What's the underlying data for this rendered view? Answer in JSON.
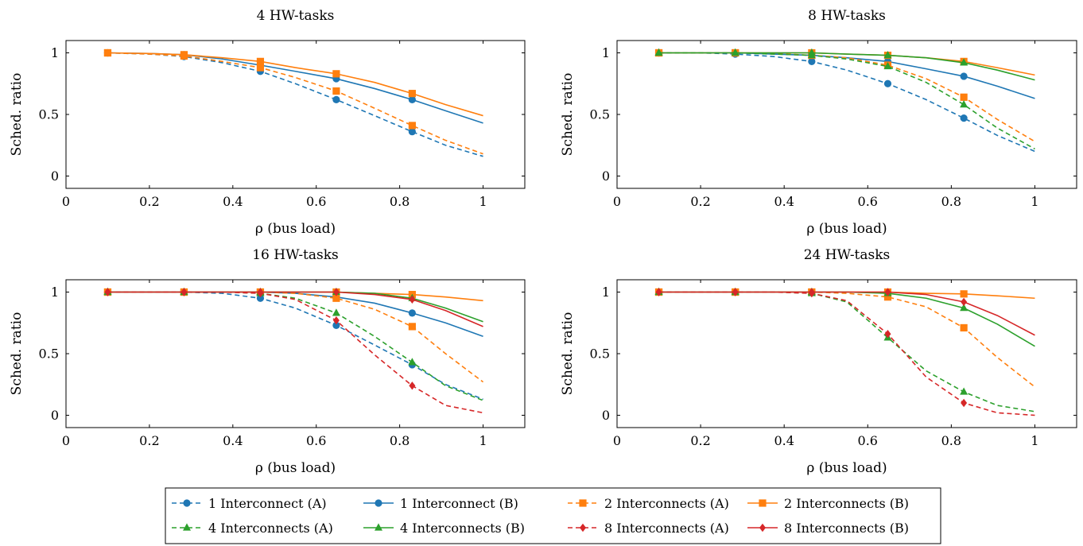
{
  "chart_data": [
    {
      "type": "line",
      "title": "4 HW-tasks",
      "xlabel": "ρ (bus load)",
      "ylabel": "Sched. ratio",
      "xlim": [
        0,
        1.1
      ],
      "ylim": [
        -0.1,
        1.1
      ],
      "xticks": [
        "0",
        "0.2",
        "0.4",
        "0.6",
        "0.8",
        "1"
      ],
      "yticks": [
        "0",
        "0.5",
        "1"
      ],
      "grid": false,
      "series": [
        {
          "name": "1 Interconnect (A)",
          "x": [
            0.1,
            0.2,
            0.283,
            0.375,
            0.466,
            0.55,
            0.648,
            0.74,
            0.83,
            0.91,
            1.0
          ],
          "y": [
            1.0,
            0.99,
            0.97,
            0.92,
            0.85,
            0.75,
            0.62,
            0.49,
            0.36,
            0.25,
            0.16
          ],
          "markers": [
            0,
            2,
            4,
            6,
            8
          ]
        },
        {
          "name": "1 Interconnect (B)",
          "x": [
            0.1,
            0.2,
            0.283,
            0.375,
            0.466,
            0.55,
            0.648,
            0.74,
            0.83,
            0.91,
            1.0
          ],
          "y": [
            1.0,
            0.995,
            0.985,
            0.95,
            0.9,
            0.85,
            0.79,
            0.71,
            0.62,
            0.53,
            0.43
          ],
          "markers": [
            0,
            2,
            4,
            6,
            8
          ]
        },
        {
          "name": "2 Interconnects (A)",
          "x": [
            0.1,
            0.2,
            0.283,
            0.375,
            0.466,
            0.55,
            0.648,
            0.74,
            0.83,
            0.91,
            1.0
          ],
          "y": [
            1.0,
            0.99,
            0.975,
            0.93,
            0.88,
            0.8,
            0.69,
            0.55,
            0.41,
            0.29,
            0.18
          ],
          "markers": [
            0,
            2,
            4,
            6,
            8
          ]
        },
        {
          "name": "2 Interconnects (B)",
          "x": [
            0.1,
            0.2,
            0.283,
            0.375,
            0.466,
            0.55,
            0.648,
            0.74,
            0.83,
            0.91,
            1.0
          ],
          "y": [
            1.0,
            0.995,
            0.985,
            0.96,
            0.93,
            0.88,
            0.83,
            0.76,
            0.67,
            0.58,
            0.49
          ],
          "markers": [
            0,
            2,
            4,
            6,
            8
          ]
        }
      ]
    },
    {
      "type": "line",
      "title": "8 HW-tasks",
      "xlabel": "ρ (bus load)",
      "ylabel": "Sched. ratio",
      "xlim": [
        0,
        1.1
      ],
      "ylim": [
        -0.1,
        1.1
      ],
      "xticks": [
        "0",
        "0.2",
        "0.4",
        "0.6",
        "0.8",
        "1"
      ],
      "yticks": [
        "0",
        "0.5",
        "1"
      ],
      "grid": false,
      "series": [
        {
          "name": "1 Interconnect (A)",
          "x": [
            0.1,
            0.2,
            0.283,
            0.375,
            0.466,
            0.55,
            0.648,
            0.74,
            0.83,
            0.91,
            1.0
          ],
          "y": [
            1.0,
            1.0,
            0.99,
            0.97,
            0.93,
            0.86,
            0.75,
            0.62,
            0.47,
            0.33,
            0.2
          ],
          "markers": [
            0,
            2,
            4,
            6,
            8
          ]
        },
        {
          "name": "1 Interconnect (B)",
          "x": [
            0.1,
            0.2,
            0.283,
            0.375,
            0.466,
            0.55,
            0.648,
            0.74,
            0.83,
            0.91,
            1.0
          ],
          "y": [
            1.0,
            1.0,
            1.0,
            0.99,
            0.98,
            0.96,
            0.93,
            0.87,
            0.81,
            0.73,
            0.63
          ],
          "markers": [
            0,
            2,
            4,
            6,
            8
          ]
        },
        {
          "name": "2 Interconnects (A)",
          "x": [
            0.1,
            0.2,
            0.283,
            0.375,
            0.466,
            0.55,
            0.648,
            0.74,
            0.83,
            0.91,
            1.0
          ],
          "y": [
            1.0,
            1.0,
            1.0,
            0.995,
            0.98,
            0.96,
            0.9,
            0.79,
            0.64,
            0.46,
            0.28
          ],
          "markers": [
            0,
            2,
            4,
            6,
            8
          ]
        },
        {
          "name": "2 Interconnects (B)",
          "x": [
            0.1,
            0.2,
            0.283,
            0.375,
            0.466,
            0.55,
            0.648,
            0.74,
            0.83,
            0.91,
            1.0
          ],
          "y": [
            1.0,
            1.0,
            1.0,
            1.0,
            1.0,
            0.99,
            0.98,
            0.96,
            0.93,
            0.88,
            0.82
          ],
          "markers": [
            0,
            2,
            4,
            6,
            8
          ]
        },
        {
          "name": "4 Interconnects (A)",
          "x": [
            0.1,
            0.2,
            0.283,
            0.375,
            0.466,
            0.55,
            0.648,
            0.74,
            0.83,
            0.91,
            1.0
          ],
          "y": [
            1.0,
            1.0,
            1.0,
            0.99,
            0.98,
            0.95,
            0.89,
            0.76,
            0.58,
            0.39,
            0.22
          ],
          "markers": [
            0,
            2,
            4,
            6,
            8
          ]
        },
        {
          "name": "4 Interconnects (B)",
          "x": [
            0.1,
            0.2,
            0.283,
            0.375,
            0.466,
            0.55,
            0.648,
            0.74,
            0.83,
            0.91,
            1.0
          ],
          "y": [
            1.0,
            1.0,
            1.0,
            1.0,
            1.0,
            0.99,
            0.98,
            0.96,
            0.92,
            0.86,
            0.78
          ],
          "markers": [
            0,
            2,
            4,
            6,
            8
          ]
        }
      ]
    },
    {
      "type": "line",
      "title": "16 HW-tasks",
      "xlabel": "ρ (bus load)",
      "ylabel": "Sched. ratio",
      "xlim": [
        0,
        1.1
      ],
      "ylim": [
        -0.1,
        1.1
      ],
      "xticks": [
        "0",
        "0.2",
        "0.4",
        "0.6",
        "0.8",
        "1"
      ],
      "yticks": [
        "0",
        "0.5",
        "1"
      ],
      "grid": false,
      "series": [
        {
          "name": "1 Interconnect (A)",
          "x": [
            0.1,
            0.2,
            0.283,
            0.375,
            0.466,
            0.55,
            0.648,
            0.74,
            0.83,
            0.91,
            1.0
          ],
          "y": [
            1.0,
            1.0,
            1.0,
            0.99,
            0.95,
            0.87,
            0.73,
            0.57,
            0.41,
            0.25,
            0.13
          ],
          "markers": [
            0,
            2,
            4,
            6,
            8
          ]
        },
        {
          "name": "1 Interconnect (B)",
          "x": [
            0.1,
            0.2,
            0.283,
            0.375,
            0.466,
            0.55,
            0.648,
            0.74,
            0.83,
            0.91,
            1.0
          ],
          "y": [
            1.0,
            1.0,
            1.0,
            1.0,
            1.0,
            0.99,
            0.96,
            0.91,
            0.83,
            0.75,
            0.64
          ],
          "markers": [
            0,
            2,
            4,
            6,
            8
          ]
        },
        {
          "name": "2 Interconnects (A)",
          "x": [
            0.1,
            0.2,
            0.283,
            0.375,
            0.466,
            0.55,
            0.648,
            0.74,
            0.83,
            0.91,
            1.0
          ],
          "y": [
            1.0,
            1.0,
            1.0,
            1.0,
            1.0,
            0.99,
            0.95,
            0.86,
            0.72,
            0.5,
            0.27
          ],
          "markers": [
            0,
            2,
            4,
            6,
            8
          ]
        },
        {
          "name": "2 Interconnects (B)",
          "x": [
            0.1,
            0.2,
            0.283,
            0.375,
            0.466,
            0.55,
            0.648,
            0.74,
            0.83,
            0.91,
            1.0
          ],
          "y": [
            1.0,
            1.0,
            1.0,
            1.0,
            1.0,
            1.0,
            1.0,
            0.99,
            0.98,
            0.96,
            0.93
          ],
          "markers": [
            0,
            2,
            4,
            6,
            8
          ]
        },
        {
          "name": "4 Interconnects (A)",
          "x": [
            0.1,
            0.2,
            0.283,
            0.375,
            0.466,
            0.55,
            0.648,
            0.74,
            0.83,
            0.91,
            1.0
          ],
          "y": [
            1.0,
            1.0,
            1.0,
            1.0,
            0.99,
            0.95,
            0.83,
            0.64,
            0.43,
            0.24,
            0.12
          ],
          "markers": [
            0,
            2,
            4,
            6,
            8
          ]
        },
        {
          "name": "4 Interconnects (B)",
          "x": [
            0.1,
            0.2,
            0.283,
            0.375,
            0.466,
            0.55,
            0.648,
            0.74,
            0.83,
            0.91,
            1.0
          ],
          "y": [
            1.0,
            1.0,
            1.0,
            1.0,
            1.0,
            1.0,
            1.0,
            0.99,
            0.95,
            0.87,
            0.76
          ],
          "markers": [
            0,
            2,
            4,
            6,
            8
          ]
        },
        {
          "name": "8 Interconnects (A)",
          "x": [
            0.1,
            0.2,
            0.283,
            0.375,
            0.466,
            0.55,
            0.648,
            0.74,
            0.83,
            0.91,
            1.0
          ],
          "y": [
            1.0,
            1.0,
            1.0,
            1.0,
            0.99,
            0.94,
            0.77,
            0.49,
            0.24,
            0.08,
            0.02
          ],
          "markers": [
            0,
            2,
            4,
            6,
            8
          ]
        },
        {
          "name": "8 Interconnects (B)",
          "x": [
            0.1,
            0.2,
            0.283,
            0.375,
            0.466,
            0.55,
            0.648,
            0.74,
            0.83,
            0.91,
            1.0
          ],
          "y": [
            1.0,
            1.0,
            1.0,
            1.0,
            1.0,
            1.0,
            1.0,
            0.98,
            0.94,
            0.85,
            0.72
          ],
          "markers": [
            0,
            2,
            4,
            6,
            8
          ]
        }
      ]
    },
    {
      "type": "line",
      "title": "24 HW-tasks",
      "xlabel": "ρ (bus load)",
      "ylabel": "Sched. ratio",
      "xlim": [
        0,
        1.1
      ],
      "ylim": [
        -0.1,
        1.1
      ],
      "xticks": [
        "0",
        "0.2",
        "0.4",
        "0.6",
        "0.8",
        "1"
      ],
      "yticks": [
        "0",
        "0.5",
        "1"
      ],
      "grid": false,
      "series": [
        {
          "name": "2 Interconnects (A)",
          "x": [
            0.1,
            0.2,
            0.283,
            0.375,
            0.466,
            0.55,
            0.648,
            0.74,
            0.83,
            0.91,
            1.0
          ],
          "y": [
            1.0,
            1.0,
            1.0,
            1.0,
            1.0,
            0.99,
            0.96,
            0.88,
            0.71,
            0.47,
            0.23
          ],
          "markers": [
            0,
            2,
            4,
            6,
            8
          ]
        },
        {
          "name": "2 Interconnects (B)",
          "x": [
            0.1,
            0.2,
            0.283,
            0.375,
            0.466,
            0.55,
            0.648,
            0.74,
            0.83,
            0.91,
            1.0
          ],
          "y": [
            1.0,
            1.0,
            1.0,
            1.0,
            1.0,
            1.0,
            1.0,
            0.99,
            0.985,
            0.97,
            0.95
          ],
          "markers": [
            0,
            2,
            4,
            6,
            8
          ]
        },
        {
          "name": "4 Interconnects (A)",
          "x": [
            0.1,
            0.2,
            0.283,
            0.375,
            0.466,
            0.55,
            0.648,
            0.74,
            0.83,
            0.91,
            1.0
          ],
          "y": [
            1.0,
            1.0,
            1.0,
            1.0,
            0.99,
            0.92,
            0.63,
            0.36,
            0.19,
            0.08,
            0.03
          ],
          "markers": [
            0,
            2,
            4,
            6,
            8
          ]
        },
        {
          "name": "4 Interconnects (B)",
          "x": [
            0.1,
            0.2,
            0.283,
            0.375,
            0.466,
            0.55,
            0.648,
            0.74,
            0.83,
            0.91,
            1.0
          ],
          "y": [
            1.0,
            1.0,
            1.0,
            1.0,
            1.0,
            1.0,
            0.99,
            0.95,
            0.87,
            0.74,
            0.56
          ],
          "markers": [
            0,
            2,
            4,
            6,
            8
          ]
        },
        {
          "name": "8 Interconnects (A)",
          "x": [
            0.1,
            0.2,
            0.283,
            0.375,
            0.466,
            0.55,
            0.648,
            0.74,
            0.83,
            0.91,
            1.0
          ],
          "y": [
            1.0,
            1.0,
            1.0,
            1.0,
            0.99,
            0.93,
            0.66,
            0.31,
            0.1,
            0.02,
            0.0
          ],
          "markers": [
            0,
            2,
            4,
            6,
            8
          ]
        },
        {
          "name": "8 Interconnects (B)",
          "x": [
            0.1,
            0.2,
            0.283,
            0.375,
            0.466,
            0.55,
            0.648,
            0.74,
            0.83,
            0.91,
            1.0
          ],
          "y": [
            1.0,
            1.0,
            1.0,
            1.0,
            1.0,
            1.0,
            1.0,
            0.98,
            0.92,
            0.81,
            0.65
          ],
          "markers": [
            0,
            2,
            4,
            6,
            8
          ]
        }
      ]
    }
  ],
  "legend": {
    "placement": "bottom-center",
    "entries": [
      {
        "name": "1 Interconnect (A)",
        "color": "#1f77b4",
        "dash": true,
        "marker": "circle"
      },
      {
        "name": "1 Interconnect (B)",
        "color": "#1f77b4",
        "dash": false,
        "marker": "circle"
      },
      {
        "name": "2 Interconnects (A)",
        "color": "#ff7f0e",
        "dash": true,
        "marker": "square"
      },
      {
        "name": "2 Interconnects (B)",
        "color": "#ff7f0e",
        "dash": false,
        "marker": "square"
      },
      {
        "name": "4 Interconnects (A)",
        "color": "#2ca02c",
        "dash": true,
        "marker": "triangle"
      },
      {
        "name": "4 Interconnects (B)",
        "color": "#2ca02c",
        "dash": false,
        "marker": "triangle"
      },
      {
        "name": "8 Interconnects (A)",
        "color": "#d62728",
        "dash": true,
        "marker": "diamond"
      },
      {
        "name": "8 Interconnects (B)",
        "color": "#d62728",
        "dash": false,
        "marker": "diamond"
      }
    ]
  }
}
